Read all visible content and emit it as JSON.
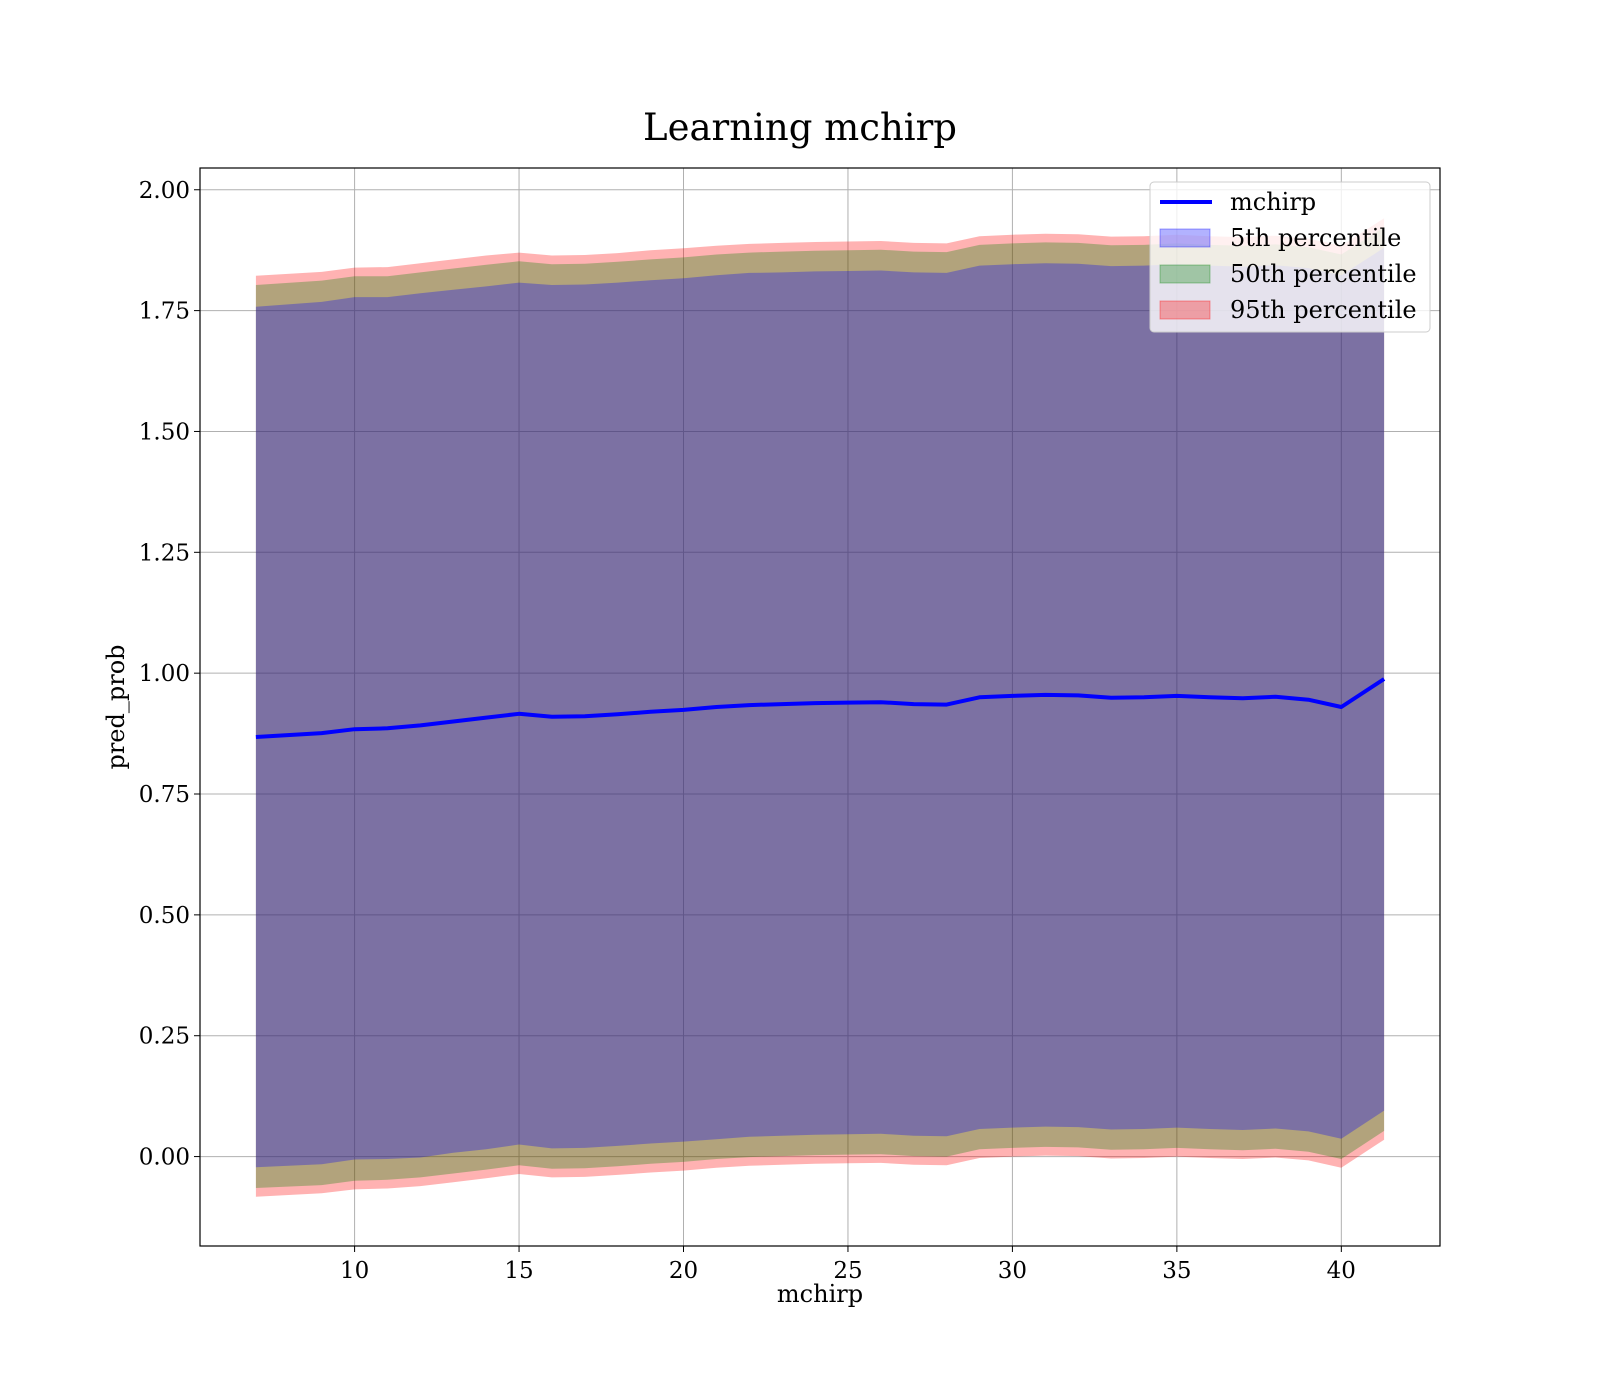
{
  "chart_data": {
    "type": "area",
    "title": "Learning mchirp",
    "xlabel": "mchirp",
    "ylabel": "pred_prob",
    "xlim": [
      5.3,
      43.0
    ],
    "ylim": [
      -0.185,
      2.045
    ],
    "xticks": [
      10,
      15,
      20,
      25,
      30,
      35,
      40
    ],
    "yticks": [
      0.0,
      0.25,
      0.5,
      0.75,
      1.0,
      1.25,
      1.5,
      1.75,
      2.0
    ],
    "grid": true,
    "legend_position": "top-right",
    "x": [
      7.0,
      9.0,
      10.0,
      11.0,
      12.0,
      13.0,
      14.0,
      15.0,
      16.0,
      17.0,
      18.0,
      19.0,
      20.0,
      21.0,
      22.0,
      23.0,
      24.0,
      25.0,
      26.0,
      27.0,
      28.0,
      29.0,
      30.0,
      31.0,
      32.0,
      33.0,
      34.0,
      35.0,
      36.0,
      37.0,
      38.0,
      39.0,
      40.0,
      41.3
    ],
    "series": [
      {
        "name": "mchirp",
        "kind": "line",
        "color": "#0000ff",
        "values": [
          0.868,
          0.876,
          0.884,
          0.886,
          0.892,
          0.9,
          0.908,
          0.916,
          0.91,
          0.911,
          0.915,
          0.92,
          0.924,
          0.93,
          0.934,
          0.936,
          0.938,
          0.939,
          0.94,
          0.936,
          0.935,
          0.95,
          0.953,
          0.955,
          0.954,
          0.949,
          0.95,
          0.953,
          0.95,
          0.948,
          0.951,
          0.945,
          0.93,
          0.988
        ]
      },
      {
        "name": "5th percentile",
        "kind": "band",
        "color": "#0000ff",
        "lower": [
          -0.022,
          -0.016,
          -0.006,
          -0.005,
          -0.002,
          0.008,
          0.015,
          0.025,
          0.017,
          0.018,
          0.022,
          0.027,
          0.031,
          0.036,
          0.041,
          0.043,
          0.045,
          0.046,
          0.047,
          0.043,
          0.042,
          0.057,
          0.06,
          0.062,
          0.061,
          0.056,
          0.057,
          0.06,
          0.057,
          0.055,
          0.058,
          0.052,
          0.037,
          0.095
        ],
        "upper": [
          1.758,
          1.768,
          1.778,
          1.778,
          1.786,
          1.793,
          1.8,
          1.808,
          1.803,
          1.804,
          1.808,
          1.813,
          1.817,
          1.823,
          1.828,
          1.829,
          1.831,
          1.832,
          1.833,
          1.829,
          1.828,
          1.843,
          1.846,
          1.848,
          1.847,
          1.842,
          1.843,
          1.846,
          1.843,
          1.841,
          1.844,
          1.838,
          1.823,
          1.88
        ]
      },
      {
        "name": "50th percentile",
        "kind": "band",
        "color": "#008000",
        "lower": [
          -0.065,
          -0.059,
          -0.05,
          -0.048,
          -0.043,
          -0.035,
          -0.027,
          -0.018,
          -0.025,
          -0.024,
          -0.02,
          -0.015,
          -0.011,
          -0.005,
          -0.001,
          0.001,
          0.003,
          0.004,
          0.005,
          0.001,
          0.0,
          0.015,
          0.018,
          0.02,
          0.019,
          0.014,
          0.015,
          0.018,
          0.015,
          0.013,
          0.016,
          0.01,
          -0.005,
          0.053
        ],
        "upper": [
          1.803,
          1.812,
          1.821,
          1.821,
          1.829,
          1.837,
          1.845,
          1.852,
          1.846,
          1.847,
          1.851,
          1.856,
          1.86,
          1.866,
          1.87,
          1.872,
          1.874,
          1.875,
          1.876,
          1.872,
          1.871,
          1.886,
          1.889,
          1.891,
          1.89,
          1.885,
          1.886,
          1.889,
          1.886,
          1.884,
          1.887,
          1.881,
          1.866,
          1.923
        ]
      },
      {
        "name": "95th percentile",
        "kind": "band",
        "color": "#ff0000",
        "lower": [
          -0.083,
          -0.076,
          -0.068,
          -0.066,
          -0.061,
          -0.053,
          -0.045,
          -0.036,
          -0.043,
          -0.042,
          -0.038,
          -0.033,
          -0.029,
          -0.023,
          -0.019,
          -0.017,
          -0.015,
          -0.014,
          -0.013,
          -0.017,
          -0.018,
          -0.003,
          0.0,
          0.002,
          0.001,
          -0.004,
          -0.003,
          0.0,
          -0.003,
          -0.005,
          -0.002,
          -0.008,
          -0.023,
          0.035
        ],
        "upper": [
          1.822,
          1.83,
          1.839,
          1.84,
          1.848,
          1.856,
          1.864,
          1.87,
          1.864,
          1.865,
          1.869,
          1.875,
          1.879,
          1.884,
          1.888,
          1.89,
          1.892,
          1.893,
          1.894,
          1.89,
          1.889,
          1.904,
          1.907,
          1.909,
          1.908,
          1.903,
          1.904,
          1.907,
          1.904,
          1.902,
          1.905,
          1.899,
          1.884,
          1.941
        ]
      }
    ]
  }
}
